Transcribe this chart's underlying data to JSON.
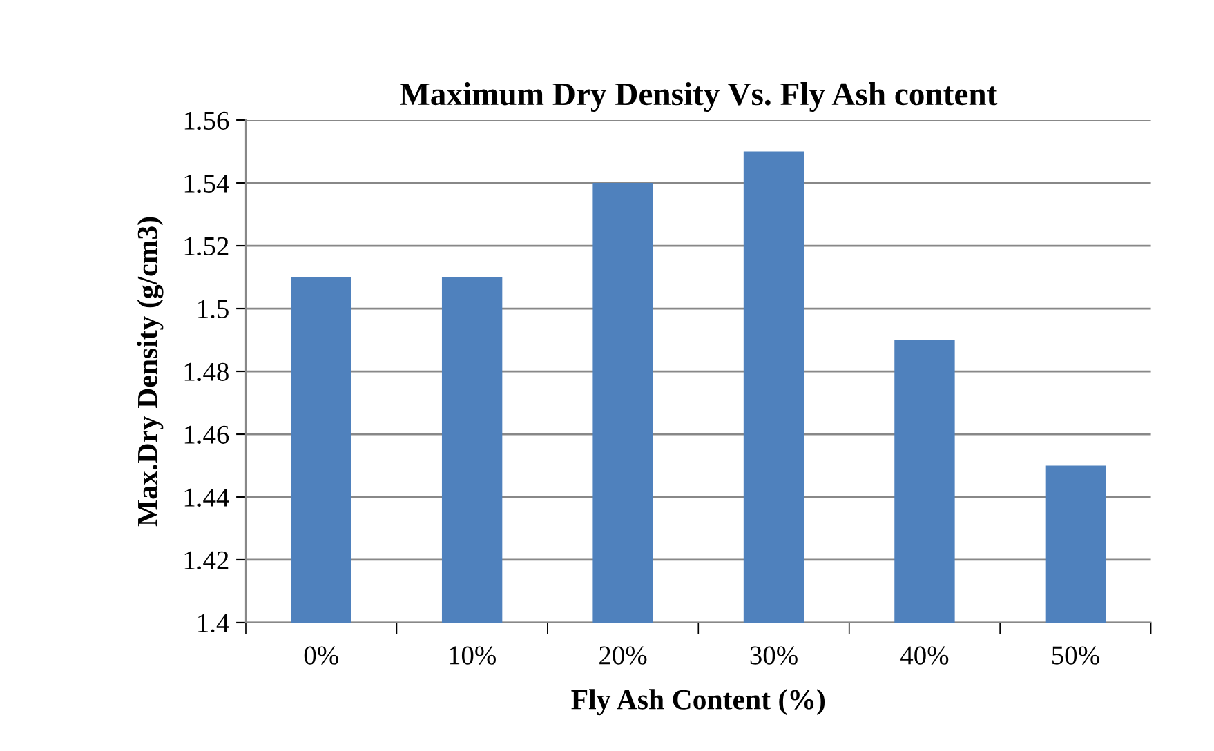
{
  "chart_data": {
    "type": "bar",
    "title": "Maximum Dry Density Vs. Fly Ash content",
    "xlabel": "Fly Ash Content (%)",
    "ylabel": "Max.Dry Density (g/cm3)",
    "categories": [
      "0%",
      "10%",
      "20%",
      "30%",
      "40%",
      "50%"
    ],
    "values": [
      1.51,
      1.51,
      1.54,
      1.55,
      1.49,
      1.45
    ],
    "color": "#4f81bd",
    "ylim": [
      1.4,
      1.56
    ],
    "yticks": [
      1.4,
      1.42,
      1.44,
      1.46,
      1.48,
      1.5,
      1.52,
      1.54,
      1.56
    ],
    "grid": "y",
    "legend": false
  }
}
